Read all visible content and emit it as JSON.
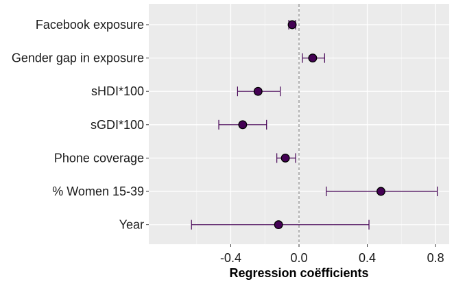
{
  "chart_data": {
    "type": "scatter",
    "subtype": "coefficient-plot",
    "xlabel": "Regression coëfficients",
    "ylabel": "",
    "xlim": [
      -0.88,
      0.88
    ],
    "xticks": [
      -0.4,
      0.0,
      0.4,
      0.8
    ],
    "xtick_labels": [
      "-0.4",
      "0.0",
      "0.4",
      "0.8"
    ],
    "reference_line_x": 0,
    "grid": true,
    "categories": [
      "Facebook exposure",
      "Gender gap in exposure",
      "sHDI*100",
      "sGDI*100",
      "Phone coverage",
      "% Women 15-39",
      "Year"
    ],
    "estimates": [
      -0.04,
      0.08,
      -0.24,
      -0.33,
      -0.08,
      0.48,
      -0.12
    ],
    "lower": [
      -0.06,
      0.02,
      -0.36,
      -0.47,
      -0.13,
      0.16,
      -0.63
    ],
    "upper": [
      -0.02,
      0.15,
      -0.11,
      -0.19,
      -0.02,
      0.81,
      0.41
    ],
    "colors": {
      "panel": "#ebebeb",
      "grid_major": "#ffffff",
      "point_fill": "#440154",
      "errorbar": "#440154",
      "ref_line": "#8c8c8c"
    }
  }
}
